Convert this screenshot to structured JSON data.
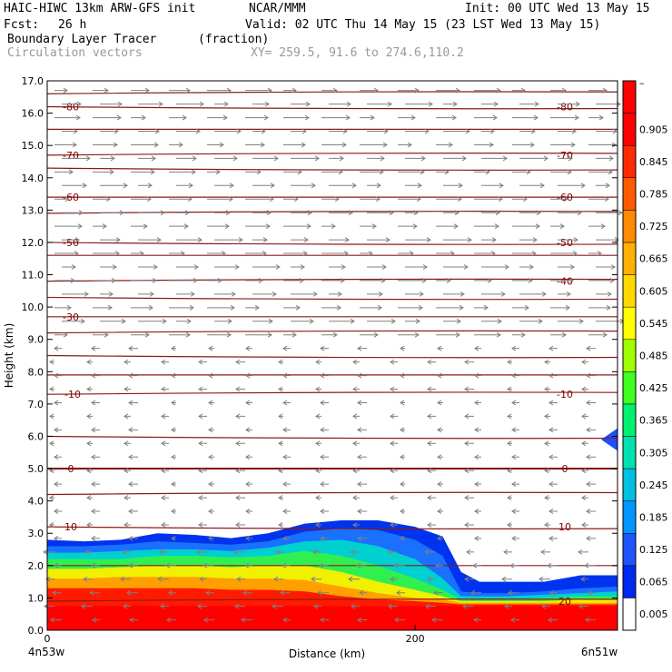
{
  "header": {
    "title_left": "HAIC-HIWC 13km ARW-GFS init",
    "org": "NCAR/MMM",
    "init": "Init: 00 UTC Wed 13 May 15",
    "fcst_label": "Fcst:",
    "fcst_value": "26 h",
    "valid": "Valid: 02 UTC Thu 14 May 15 (23 LST Wed 13 May 15)",
    "field_name": "Boundary Layer Tracer",
    "field_units": "(fraction)",
    "vector_name": "Circulation vectors",
    "xy_text": "XY= 259.5, 91.6 to 274.6,110.2"
  },
  "chart_data": {
    "type": "heatmap",
    "xlabel": "Distance (km)",
    "ylabel": "Height (km)",
    "xlim": [
      0,
      310
    ],
    "ylim": [
      0,
      17
    ],
    "x_ticks": [
      0,
      200
    ],
    "y_ticks": [
      "0.0",
      "1.0",
      "2.0",
      "3.0",
      "4.0",
      "5.0",
      "6.0",
      "7.0",
      "8.0",
      "9.0",
      "10.0",
      "11.0",
      "12.0",
      "13.0",
      "14.0",
      "15.0",
      "16.0",
      "17.0"
    ],
    "x_endpoint_labels": [
      "4n53w",
      "6n51w"
    ],
    "colorbar": {
      "levels": [
        "0.005",
        "0.065",
        "0.125",
        "0.185",
        "0.245",
        "0.305",
        "0.365",
        "0.425",
        "0.485",
        "0.545",
        "0.605",
        "0.665",
        "0.725",
        "0.785",
        "0.845",
        "0.905"
      ],
      "top_label": "–",
      "colors": [
        "#ffffff",
        "#0028ee",
        "#1f55ff",
        "#0096ff",
        "#00c0e0",
        "#00e0b0",
        "#00f070",
        "#40ff20",
        "#a0ff00",
        "#ffff00",
        "#ffd800",
        "#ffb000",
        "#ff8a00",
        "#ff5a00",
        "#ff2a00",
        "#ff0000",
        "#ff0000"
      ]
    },
    "tracer_boundary_km": {
      "x": [
        0,
        20,
        40,
        60,
        80,
        100,
        120,
        140,
        160,
        180,
        200,
        215,
        225,
        235,
        250,
        270,
        290,
        310
      ],
      "dark_blue_top": [
        2.8,
        2.75,
        2.8,
        3.0,
        2.95,
        2.85,
        3.0,
        3.3,
        3.4,
        3.4,
        3.2,
        2.9,
        1.8,
        1.5,
        1.5,
        1.5,
        1.7,
        1.7
      ],
      "blue_top": [
        2.6,
        2.6,
        2.65,
        2.75,
        2.7,
        2.65,
        2.75,
        3.05,
        3.15,
        3.1,
        2.8,
        2.3,
        1.2,
        1.15,
        1.15,
        1.2,
        1.3,
        1.35
      ],
      "cyan_top": [
        2.4,
        2.4,
        2.45,
        2.5,
        2.5,
        2.45,
        2.55,
        2.75,
        2.8,
        2.6,
        2.2,
        1.6,
        1.05,
        1.05,
        1.05,
        1.1,
        1.15,
        1.2
      ],
      "green_top": [
        2.2,
        2.2,
        2.2,
        2.3,
        2.3,
        2.25,
        2.3,
        2.45,
        2.3,
        2.0,
        1.6,
        1.25,
        0.95,
        0.95,
        0.95,
        1.0,
        1.05,
        1.05
      ],
      "yellow_top": [
        1.9,
        1.9,
        1.95,
        2.0,
        2.0,
        1.95,
        2.0,
        2.0,
        1.8,
        1.5,
        1.25,
        1.05,
        0.9,
        0.9,
        0.9,
        0.9,
        0.95,
        0.95
      ],
      "orange_top": [
        1.6,
        1.6,
        1.65,
        1.65,
        1.65,
        1.6,
        1.6,
        1.55,
        1.35,
        1.15,
        1.0,
        0.95,
        0.85,
        0.85,
        0.85,
        0.85,
        0.85,
        0.85
      ],
      "red_top": [
        1.3,
        1.3,
        1.3,
        1.3,
        1.3,
        1.25,
        1.25,
        1.2,
        1.05,
        0.95,
        0.9,
        0.85,
        0.8,
        0.8,
        0.8,
        0.8,
        0.8,
        0.8
      ]
    },
    "isotherm_labels": [
      {
        "text": "-80",
        "height_km": 16.2
      },
      {
        "text": "-70",
        "height_km": 14.7
      },
      {
        "text": "-60",
        "height_km": 13.4
      },
      {
        "text": "-50",
        "height_km": 12.0
      },
      {
        "text": "-40",
        "height_km": 10.8
      },
      {
        "text": "-30",
        "height_km": 9.7
      },
      {
        "text": "-10",
        "height_km": 7.3
      },
      {
        "text": "0",
        "height_km": 5.0
      },
      {
        "text": "10",
        "height_km": 3.2
      },
      {
        "text": "20",
        "height_km": 0.9
      }
    ],
    "isotherm_heights_km": [
      16.6,
      16.2,
      15.5,
      14.7,
      14.3,
      13.4,
      12.9,
      12.0,
      11.6,
      10.8,
      10.3,
      9.7,
      9.2,
      8.5,
      7.9,
      7.3,
      6.0,
      5.0,
      4.2,
      3.2,
      2.0,
      0.9
    ]
  }
}
